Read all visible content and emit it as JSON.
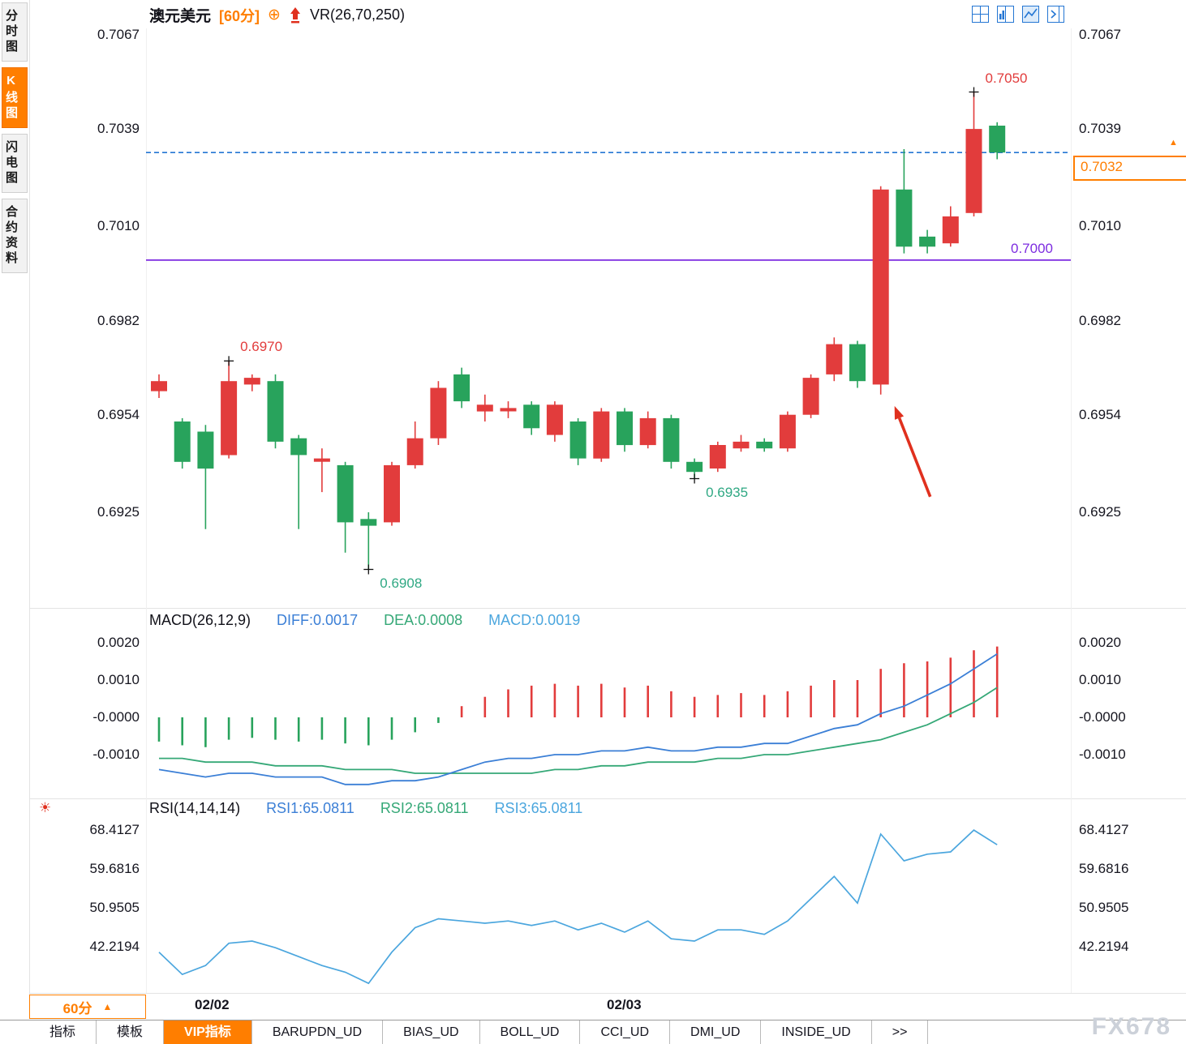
{
  "window": {
    "watermark": "FX678"
  },
  "sidebar": {
    "items": [
      {
        "label": "分时图",
        "active": false
      },
      {
        "label": "K线图",
        "active": true
      },
      {
        "label": "闪电图",
        "active": false
      },
      {
        "label": "合约资料",
        "active": false
      }
    ]
  },
  "titlebar": {
    "instrument": "澳元美元",
    "period": "[60分]",
    "indicator": "VR(26,70,250)"
  },
  "icons": {
    "plus": "⊕",
    "price_marker": "▲",
    "period_arrow": "▲",
    "sun": "☀"
  },
  "price_box": {
    "value": "0.7032"
  },
  "period_box": {
    "label": "60分"
  },
  "bottom_tabs": {
    "items": [
      {
        "label": "指标",
        "active": false
      },
      {
        "label": "模板",
        "active": false
      },
      {
        "label": "VIP指标",
        "active": true
      },
      {
        "label": "BARUPDN_UD",
        "active": false
      },
      {
        "label": "BIAS_UD",
        "active": false
      },
      {
        "label": "BOLL_UD",
        "active": false
      },
      {
        "label": "CCI_UD",
        "active": false
      },
      {
        "label": "DMI_UD",
        "active": false
      },
      {
        "label": "INSIDE_UD",
        "active": false
      },
      {
        "label": ">>",
        "active": false
      }
    ]
  },
  "colors": {
    "up": "#e23c3c",
    "down": "#28a35c",
    "accent": "#ff7e00",
    "purple": "#7d2ce0",
    "dash_blue": "#2476d3",
    "diff_blue": "#3b7fd6",
    "dea_green": "#35a877",
    "macd_cyan": "#4ba6de",
    "rsi_line": "#4ba6de",
    "label_green": "#2fa883"
  },
  "chart_data": [
    {
      "type": "candlestick",
      "instrument": "澳元美元",
      "interval": "60分",
      "overlay_indicator": "VR(26,70,250)",
      "y_ticks": [
        "0.7067",
        "0.7039",
        "0.7010",
        "0.6982",
        "0.6954",
        "0.6925"
      ],
      "x_ticks": [
        {
          "label": "02/02",
          "i": 2.3
        },
        {
          "label": "02/03",
          "i": 20
        }
      ],
      "ylim": [
        0.6898,
        0.7069
      ],
      "current_price": "0.7032",
      "hlines": [
        {
          "value": 0.7,
          "label": "0.7000",
          "style": "solid",
          "color_key": "purple"
        },
        {
          "value": 0.7032,
          "label": "",
          "style": "dashed",
          "color_key": "dash_blue"
        }
      ],
      "candles": [
        {
          "o": 0.6961,
          "h": 0.6966,
          "l": 0.6959,
          "c": 0.6964
        },
        {
          "o": 0.6952,
          "h": 0.6953,
          "l": 0.6938,
          "c": 0.694
        },
        {
          "o": 0.6949,
          "h": 0.6951,
          "l": 0.692,
          "c": 0.6938
        },
        {
          "o": 0.6942,
          "h": 0.697,
          "l": 0.6941,
          "c": 0.6964
        },
        {
          "o": 0.6963,
          "h": 0.6966,
          "l": 0.6961,
          "c": 0.6965
        },
        {
          "o": 0.6964,
          "h": 0.6966,
          "l": 0.6944,
          "c": 0.6946
        },
        {
          "o": 0.6947,
          "h": 0.6948,
          "l": 0.692,
          "c": 0.6942
        },
        {
          "o": 0.694,
          "h": 0.6944,
          "l": 0.6931,
          "c": 0.6941
        },
        {
          "o": 0.6939,
          "h": 0.694,
          "l": 0.6913,
          "c": 0.6922
        },
        {
          "o": 0.6923,
          "h": 0.6925,
          "l": 0.6908,
          "c": 0.6921
        },
        {
          "o": 0.6922,
          "h": 0.694,
          "l": 0.6921,
          "c": 0.6939
        },
        {
          "o": 0.6939,
          "h": 0.6952,
          "l": 0.6938,
          "c": 0.6947
        },
        {
          "o": 0.6947,
          "h": 0.6964,
          "l": 0.6945,
          "c": 0.6962
        },
        {
          "o": 0.6966,
          "h": 0.6968,
          "l": 0.6956,
          "c": 0.6958
        },
        {
          "o": 0.6955,
          "h": 0.696,
          "l": 0.6952,
          "c": 0.6957
        },
        {
          "o": 0.6955,
          "h": 0.6958,
          "l": 0.6953,
          "c": 0.6956
        },
        {
          "o": 0.6957,
          "h": 0.6958,
          "l": 0.6948,
          "c": 0.695
        },
        {
          "o": 0.6948,
          "h": 0.6958,
          "l": 0.6946,
          "c": 0.6957
        },
        {
          "o": 0.6952,
          "h": 0.6953,
          "l": 0.6939,
          "c": 0.6941
        },
        {
          "o": 0.6941,
          "h": 0.6956,
          "l": 0.694,
          "c": 0.6955
        },
        {
          "o": 0.6955,
          "h": 0.6956,
          "l": 0.6943,
          "c": 0.6945
        },
        {
          "o": 0.6945,
          "h": 0.6955,
          "l": 0.6944,
          "c": 0.6953
        },
        {
          "o": 0.6953,
          "h": 0.6954,
          "l": 0.6938,
          "c": 0.694
        },
        {
          "o": 0.694,
          "h": 0.6941,
          "l": 0.6935,
          "c": 0.6937
        },
        {
          "o": 0.6938,
          "h": 0.6946,
          "l": 0.6937,
          "c": 0.6945
        },
        {
          "o": 0.6944,
          "h": 0.6948,
          "l": 0.6943,
          "c": 0.6946
        },
        {
          "o": 0.6946,
          "h": 0.6947,
          "l": 0.6943,
          "c": 0.6944
        },
        {
          "o": 0.6944,
          "h": 0.6955,
          "l": 0.6943,
          "c": 0.6954
        },
        {
          "o": 0.6954,
          "h": 0.6966,
          "l": 0.6953,
          "c": 0.6965
        },
        {
          "o": 0.6966,
          "h": 0.6977,
          "l": 0.6964,
          "c": 0.6975
        },
        {
          "o": 0.6975,
          "h": 0.6976,
          "l": 0.6962,
          "c": 0.6964
        },
        {
          "o": 0.6963,
          "h": 0.7022,
          "l": 0.696,
          "c": 0.7021
        },
        {
          "o": 0.7021,
          "h": 0.7033,
          "l": 0.7002,
          "c": 0.7004
        },
        {
          "o": 0.7007,
          "h": 0.7009,
          "l": 0.7002,
          "c": 0.7004
        },
        {
          "o": 0.7005,
          "h": 0.7016,
          "l": 0.7004,
          "c": 0.7013
        },
        {
          "o": 0.7014,
          "h": 0.705,
          "l": 0.7013,
          "c": 0.7039
        },
        {
          "o": 0.704,
          "h": 0.7041,
          "l": 0.703,
          "c": 0.7032
        }
      ],
      "annotations": [
        {
          "type": "price",
          "label": "0.6970",
          "candle": 3,
          "price": 0.697,
          "side": "high"
        },
        {
          "type": "price",
          "label": "0.7050",
          "candle": 35,
          "price": 0.705,
          "side": "high"
        },
        {
          "type": "price",
          "label": "0.6935",
          "candle": 23,
          "price": 0.6935,
          "side": "low"
        },
        {
          "type": "price",
          "label": "0.6908",
          "candle": 9,
          "price": 0.6908,
          "side": "low"
        },
        {
          "type": "arrow",
          "candle": 31
        }
      ]
    },
    {
      "type": "macd",
      "header": {
        "name": "MACD(26,12,9)",
        "diff": "DIFF:0.0017",
        "dea": "DEA:0.0008",
        "macd": "MACD:0.0019"
      },
      "y_ticks": [
        "0.0020",
        "0.0010",
        "-0.0000",
        "-0.0010"
      ],
      "histogram": [
        -0.00065,
        -0.00075,
        -0.0008,
        -0.0006,
        -0.00055,
        -0.0006,
        -0.00065,
        -0.0006,
        -0.0007,
        -0.00075,
        -0.0006,
        -0.0004,
        -0.00015,
        0.0003,
        0.00055,
        0.00075,
        0.00085,
        0.0009,
        0.00085,
        0.0009,
        0.0008,
        0.00085,
        0.0007,
        0.00055,
        0.0006,
        0.00065,
        0.0006,
        0.0007,
        0.00085,
        0.001,
        0.001,
        0.0013,
        0.00145,
        0.0015,
        0.0016,
        0.0018,
        0.0019
      ],
      "diff_line": [
        -0.0014,
        -0.0015,
        -0.0016,
        -0.0015,
        -0.0015,
        -0.0016,
        -0.0016,
        -0.0016,
        -0.0018,
        -0.0018,
        -0.0017,
        -0.0017,
        -0.0016,
        -0.0014,
        -0.0012,
        -0.0011,
        -0.0011,
        -0.001,
        -0.001,
        -0.0009,
        -0.0009,
        -0.0008,
        -0.0009,
        -0.0009,
        -0.0008,
        -0.0008,
        -0.0007,
        -0.0007,
        -0.0005,
        -0.0003,
        -0.0002,
        0.0001,
        0.0003,
        0.0006,
        0.0009,
        0.0013,
        0.0017
      ],
      "dea_line": [
        -0.0011,
        -0.0011,
        -0.0012,
        -0.0012,
        -0.0012,
        -0.0013,
        -0.0013,
        -0.0013,
        -0.0014,
        -0.0014,
        -0.0014,
        -0.0015,
        -0.0015,
        -0.0015,
        -0.0015,
        -0.0015,
        -0.0015,
        -0.0014,
        -0.0014,
        -0.0013,
        -0.0013,
        -0.0012,
        -0.0012,
        -0.0012,
        -0.0011,
        -0.0011,
        -0.001,
        -0.001,
        -0.0009,
        -0.0008,
        -0.0007,
        -0.0006,
        -0.0004,
        -0.0002,
        0.0001,
        0.0004,
        0.0008
      ]
    },
    {
      "type": "rsi",
      "header": {
        "name": "RSI(14,14,14)",
        "rsi1": "RSI1:65.0811",
        "rsi2": "RSI2:65.0811",
        "rsi3": "RSI3:65.0811"
      },
      "y_ticks": [
        "68.4127",
        "59.6816",
        "50.9505",
        "42.2194"
      ],
      "values": [
        41,
        36,
        38,
        43,
        43.5,
        42,
        40,
        38,
        36.5,
        34,
        41,
        46.5,
        48.5,
        48,
        47.5,
        48,
        47,
        48,
        46,
        47.5,
        45.5,
        48,
        44,
        43.5,
        46,
        46,
        45,
        48,
        53,
        58,
        52,
        67.5,
        61.5,
        63,
        63.5,
        68.4,
        65.1
      ]
    }
  ]
}
